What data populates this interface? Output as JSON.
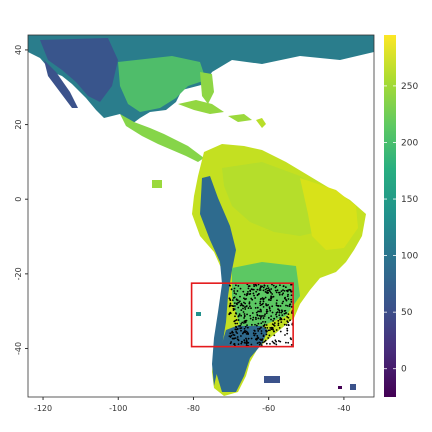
{
  "map": {
    "x_ticks": [
      "-120",
      "-100",
      "-80",
      "-60",
      "-40"
    ],
    "y_ticks": [
      "40",
      "20",
      "0",
      "-20",
      "-40"
    ],
    "extent": {
      "lon": [
        -124,
        -32
      ],
      "lat": [
        44,
        -53
      ]
    }
  },
  "legend": {
    "ticks": [
      "250",
      "200",
      "150",
      "100",
      "50",
      "0"
    ],
    "range": [
      -25,
      295
    ],
    "palette": "viridis"
  },
  "highlight_box": {
    "lon": [
      -80.5,
      -53.5
    ],
    "lat": [
      -22.5,
      -39.5
    ],
    "color": "#e41a1c"
  },
  "points_color": "#000000",
  "colors": {
    "v_low": "#440154",
    "v_mid_low": "#31688e",
    "v_mid": "#35b779",
    "v_high": "#b5de2b",
    "v_top": "#fde725"
  }
}
